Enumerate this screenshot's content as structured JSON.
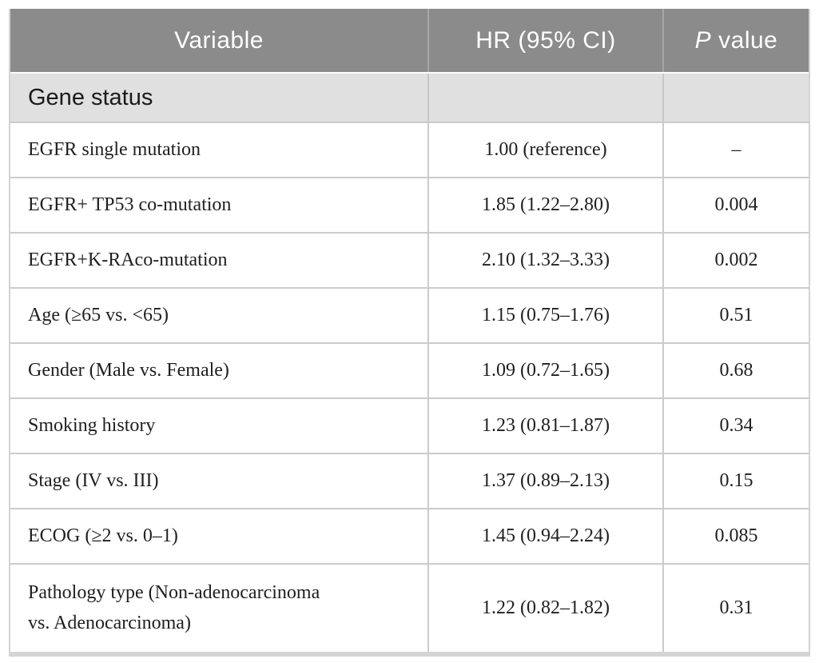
{
  "table": {
    "header": {
      "variable": "Variable",
      "hr": "HR (95% CI)",
      "p_italic": "P",
      "p_rest": "value"
    },
    "section": {
      "label": "Gene status"
    },
    "rows": [
      {
        "variable": "EGFR single mutation",
        "hr": "1.00 (reference)",
        "p": "–"
      },
      {
        "variable": "EGFR+ TP53 co-mutation",
        "hr": "1.85 (1.22–2.80)",
        "p": "0.004"
      },
      {
        "variable": "EGFR+K-RAco-mutation",
        "hr": "2.10 (1.32–3.33)",
        "p": "0.002"
      },
      {
        "variable": "Age (≥65 vs. <65)",
        "hr": "1.15 (0.75–1.76)",
        "p": "0.51"
      },
      {
        "variable": "Gender (Male vs. Female)",
        "hr": "1.09 (0.72–1.65)",
        "p": "0.68"
      },
      {
        "variable": "Smoking history",
        "hr": "1.23 (0.81–1.87)",
        "p": "0.34"
      },
      {
        "variable": "Stage (IV vs. III)",
        "hr": "1.37 (0.89–2.13)",
        "p": "0.15"
      },
      {
        "variable": "ECOG (≥2 vs. 0–1)",
        "hr": "1.45 (0.94–2.24)",
        "p": "0.085"
      },
      {
        "variable": "Pathology type (Non-adenocarcinoma vs. Adenocarcinoma)",
        "hr": "1.22 (0.82–1.82)",
        "p": "0.31"
      }
    ],
    "colors": {
      "header_bg": "#8b8b8b",
      "header_text": "#ffffff",
      "section_bg": "#e0e0e0",
      "grid_line": "#cbcbcb",
      "bottom_bar": "#d4d4d4"
    }
  }
}
